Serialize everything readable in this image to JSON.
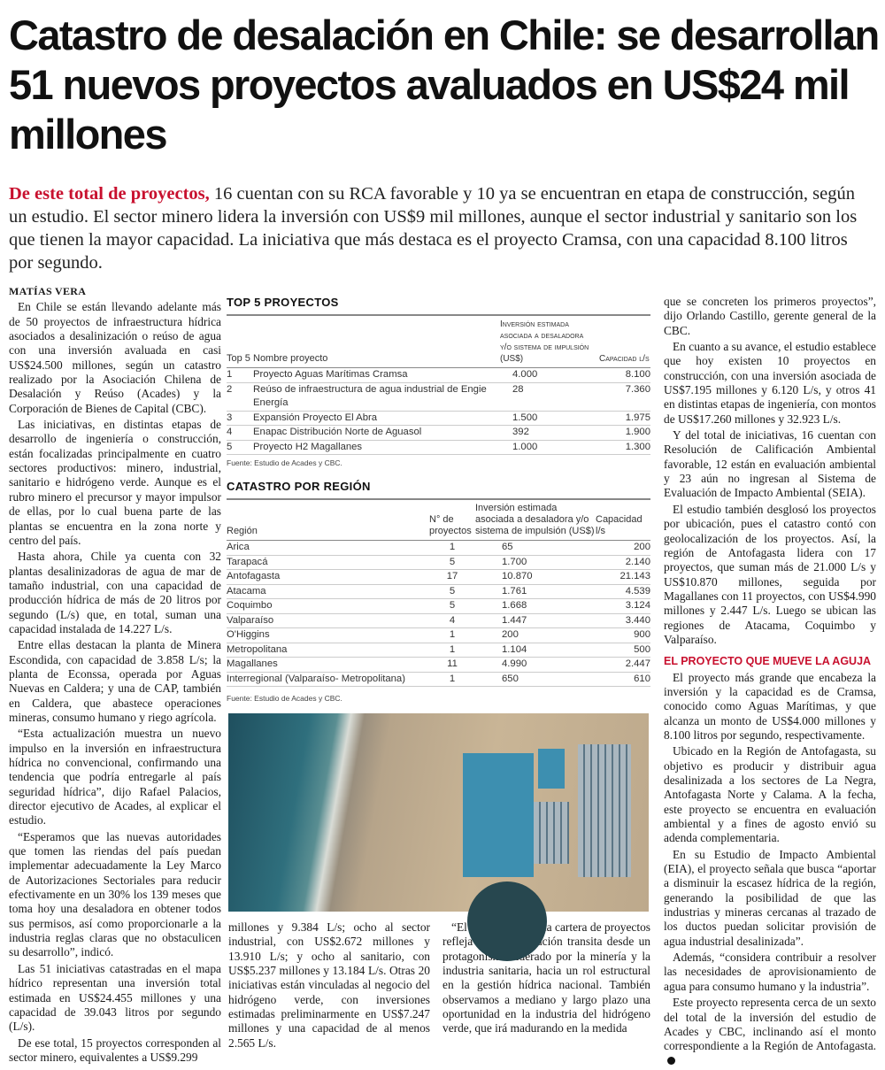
{
  "headline": "Catastro de desalación en Chile: se desarrollan 51 nuevos proyectos avaluados en US$24 mil millones",
  "lead": {
    "highlight": "De este total de proyectos,",
    "text": " 16 cuentan con su RCA favorable y 10 ya se encuentran en etapa de construcción, según un estudio. El sector minero lidera la inversión con US$9 mil millones, aunque el sector industrial y sanitario son los que tienen la mayor capacidad. La iniciativa que más destaca es el proyecto Cramsa, con una capacidad 8.100 litros por segundo."
  },
  "byline": "MATÍAS VERA",
  "left_col": [
    "En Chile se están llevando adelante más de 50 proyectos de infraestructura hídrica asociados a desalinización o reúso de agua con una inversión avaluada en casi US$24.500 millones, según un catastro realizado por la Asociación Chilena de Desalación y Reúso (Acades) y la Corporación de Bienes de Capital (CBC).",
    "Las iniciativas, en distintas etapas de desarrollo de ingeniería o construcción, están focalizadas principalmente en cuatro sectores productivos: minero, industrial, sanitario e hidrógeno verde. Aunque es el rubro minero el precursor y mayor impulsor de ellas, por lo cual buena parte de las plantas se encuentra en la zona norte y centro del país.",
    "Hasta ahora, Chile ya cuenta con 32 plantas desalinizadoras de agua de mar de tamaño industrial, con una capacidad de producción hídrica de más de 20 litros por segundo (L/s) que, en total, suman una capacidad instalada de 14.227 L/s.",
    "Entre ellas destacan la planta de Minera Escondida, con capacidad de 3.858 L/s; la planta de Econssa, operada por Aguas Nuevas en Caldera; y una de CAP, también en Caldera, que abastece operaciones mineras, consumo humano y riego agrícola.",
    "“Esta actualización muestra un nuevo impulso en la inversión en infraestructura hídrica no convencional, confirmando una tendencia que podría entregarle al país seguridad hídrica”, dijo Rafael Palacios, director ejecutivo de Acades, al explicar el estudio.",
    "“Esperamos que las nuevas autoridades que tomen las riendas del país puedan implementar adecuadamente la Ley Marco de Autorizaciones Sectoriales para reducir efectivamente en un 30% los 139 meses que toma hoy una desaladora en obtener todos sus permisos, así como proporcionarle a la industria reglas claras que no obstaculicen su desarrollo”, indicó.",
    "Las 51 iniciativas catastradas en el mapa hídrico representan una inversión total estimada en US$24.455 millones y una capacidad de 39.043 litros por segundo (L/s).",
    "De ese total, 15 proyectos corresponden al sector minero, equivalentes a US$9.299"
  ],
  "mid_left": "millones y 9.384 L/s; ocho al sector industrial, con US$2.672 millones y 13.910 L/s; y ocho al sanitario, con US$5.237 millones y 13.184 L/s. Otras 20 iniciativas están vinculadas al negocio del hidrógeno verde, con inversiones estimadas preliminarmente en US$7.247 millones y una capacidad de al menos 2.565 L/s.",
  "mid_right": "“El crecimiento de la cartera de proyectos refleja que la desalación transita desde un protagonismo liderado por la minería y la industria sanitaria, hacia un rol estructural en la gestión hídrica nacional. También observamos a mediano y largo plazo una oportunidad en la industria del hidrógeno verde, que irá madurando en la medida",
  "right_col": [
    "que se concreten los primeros proyectos”, dijo Orlando Castillo, gerente general de la CBC.",
    "En cuanto a su avance, el estudio establece que hoy existen 10 proyectos en construcción, con una inversión asociada de US$7.195 millones y 6.120 L/s, y otros 41 en distintas etapas de ingeniería, con montos de US$17.260 millones y 32.923 L/s.",
    "Y del total de iniciativas, 16 cuentan con Resolución de Calificación Ambiental favorable, 12 están en evaluación ambiental y 23 aún no ingresan al Sistema de Evaluación de Impacto Ambiental (SEIA).",
    "El estudio también desglosó los proyectos por ubicación, pues el catastro contó con geolocalización de los proyectos. Así, la región de Antofagasta lidera con 17 proyectos, que suman más de 21.000 L/s y US$10.870 millones, seguida por Magallanes con 11 proyectos, con US$4.990 millones y 2.447 L/s. Luego se ubican las regiones de Atacama, Coquimbo y Valparaíso."
  ],
  "subhead": "EL PROYECTO QUE MUEVE LA AGUJA",
  "right_col2": [
    "El proyecto más grande que encabeza la inversión y la capacidad es de Cramsa, conocido como Aguas Marítimas, y que alcanza un monto de US$4.000 millones y 8.100 litros por segundo, respectivamente.",
    "Ubicado en la Región de Antofagasta, su objetivo es producir y distribuir agua desalinizada a los sectores de La Negra, Antofagasta Norte y Calama. A la fecha, este proyecto se encuentra en evaluación ambiental y a fines de agosto envió su adenda complementaria.",
    "En su Estudio de Impacto Ambiental (EIA), el proyecto señala que busca “aportar a disminuir la escasez hídrica de la región, generando la posibilidad de que las industrias y mineras cercanas al trazado de los ductos puedan solicitar provisión de agua industrial desalinizada”.",
    "Además, “considera contribuir a resolver las necesidades de aprovisionamiento de agua para consumo humano y la industria”.",
    "Este proyecto representa cerca de un sexto del total de la inversión del estudio de Acades y CBC, inclinando así el monto correspondiente a la Región de Antofagasta."
  ],
  "top5": {
    "title": "TOP 5 PROYECTOS",
    "headers": [
      "Top 5",
      "Nombre proyecto",
      "Inversión estimada asociada a desaladora y/o sistema de impulsión (US$)",
      "Capacidad l/s"
    ],
    "rows": [
      [
        "1",
        "Proyecto Aguas Marítimas Cramsa",
        "4.000",
        "8.100"
      ],
      [
        "2",
        "Reúso de infraestructura de agua industrial de Engie Energía",
        "28",
        "7.360"
      ],
      [
        "3",
        "Expansión Proyecto El Abra",
        "1.500",
        "1.975"
      ],
      [
        "4",
        "Enapac Distribución Norte de Aguasol",
        "392",
        "1.900"
      ],
      [
        "5",
        "Proyecto H2 Magallanes",
        "1.000",
        "1.300"
      ]
    ],
    "source": "Fuente: Estudio de Acades y CBC."
  },
  "region": {
    "title": "CATASTRO POR REGIÓN",
    "headers": [
      "Región",
      "N° de proyectos",
      "Inversión estimada asociada a desaladora y/o sistema de impulsión (US$)",
      "Capacidad l/s"
    ],
    "rows": [
      [
        "Arica",
        "1",
        "65",
        "200"
      ],
      [
        "Tarapacá",
        "5",
        "1.700",
        "2.140"
      ],
      [
        "Antofagasta",
        "17",
        "10.870",
        "21.143"
      ],
      [
        "Atacama",
        "5",
        "1.761",
        "4.539"
      ],
      [
        "Coquimbo",
        "5",
        "1.668",
        "3.124"
      ],
      [
        "Valparaíso",
        "4",
        "1.447",
        "3.440"
      ],
      [
        "O'Higgins",
        "1",
        "200",
        "900"
      ],
      [
        "Metropolitana",
        "1",
        "1.104",
        "500"
      ],
      [
        "Magallanes",
        "11",
        "4.990",
        "2.447"
      ],
      [
        "Interregional (Valparaíso- Metropolitana)",
        "1",
        "650",
        "610"
      ]
    ],
    "source": "Fuente: Estudio de Acades y CBC."
  },
  "colors": {
    "accent": "#c8102e"
  }
}
